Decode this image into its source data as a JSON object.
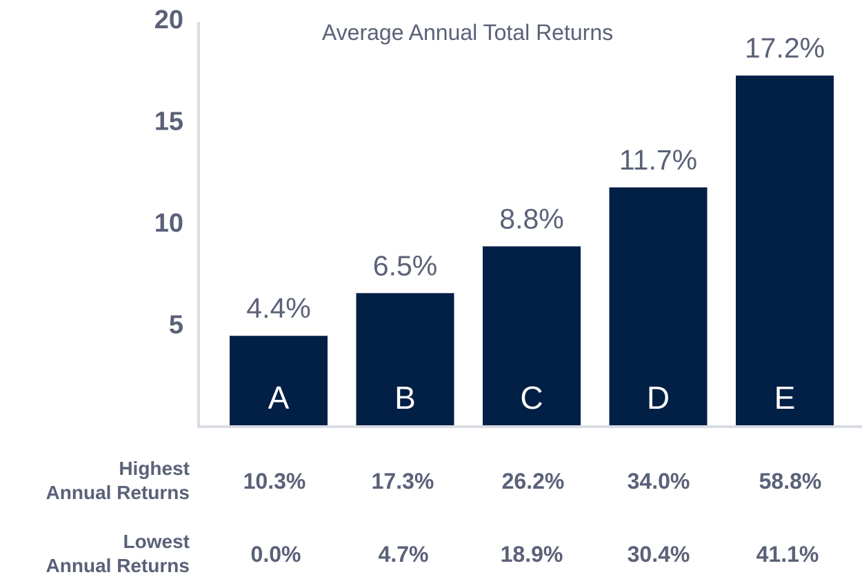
{
  "chart_data": {
    "type": "bar",
    "title": "Average Annual Total  Returns",
    "categories": [
      "A",
      "B",
      "C",
      "D",
      "E"
    ],
    "values": [
      4.4,
      6.5,
      8.8,
      11.7,
      17.2
    ],
    "value_labels": [
      "4.4%",
      "6.5%",
      "8.8%",
      "11.7%",
      "17.2%"
    ],
    "ylim": [
      0,
      20
    ],
    "yticks": [
      5,
      10,
      15,
      20
    ],
    "grid": false,
    "bar_color": "#021f45",
    "axis_color": "#d9dce3",
    "text_color": "#5a6178"
  },
  "table": {
    "rows": [
      {
        "label_line1": "Highest",
        "label_line2": "Annual Returns",
        "values": [
          "10.3%",
          "17.3%",
          "26.2%",
          "34.0%",
          "58.8%"
        ]
      },
      {
        "label_line1": "Lowest",
        "label_line2": "Annual Returns",
        "values": [
          "0.0%",
          "4.7%",
          "18.9%",
          "30.4%",
          "41.1%"
        ]
      }
    ]
  }
}
